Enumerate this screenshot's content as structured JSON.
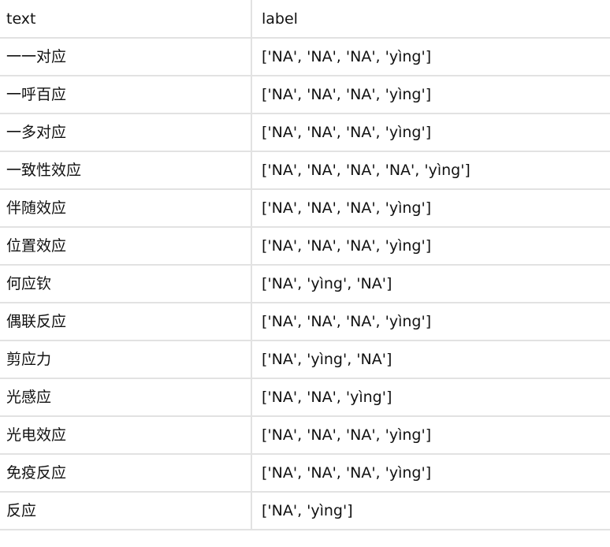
{
  "table": {
    "columns": [
      "text",
      "label"
    ],
    "rows": [
      {
        "text": "一一对应",
        "label": "['NA', 'NA', 'NA', 'yìng']"
      },
      {
        "text": "一呼百应",
        "label": "['NA', 'NA', 'NA', 'yìng']"
      },
      {
        "text": "一多对应",
        "label": "['NA', 'NA', 'NA', 'yìng']"
      },
      {
        "text": "一致性效应",
        "label": "['NA', 'NA', 'NA', 'NA', 'yìng']"
      },
      {
        "text": "伴随效应",
        "label": "['NA', 'NA', 'NA', 'yìng']"
      },
      {
        "text": "位置效应",
        "label": "['NA', 'NA', 'NA', 'yìng']"
      },
      {
        "text": "何应钦",
        "label": "['NA', 'yìng', 'NA']"
      },
      {
        "text": "偶联反应",
        "label": "['NA', 'NA', 'NA', 'yìng']"
      },
      {
        "text": "剪应力",
        "label": "['NA', 'yìng', 'NA']"
      },
      {
        "text": "光感应",
        "label": "['NA', 'NA', 'yìng']"
      },
      {
        "text": "光电效应",
        "label": "['NA', 'NA', 'NA', 'yìng']"
      },
      {
        "text": "免疫反应",
        "label": "['NA', 'NA', 'NA', 'yìng']"
      },
      {
        "text": "反应",
        "label": "['NA', 'yìng']"
      }
    ]
  }
}
